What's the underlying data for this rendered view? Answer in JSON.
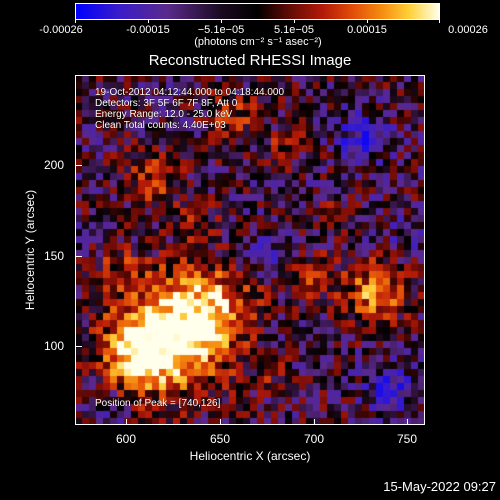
{
  "colorbar": {
    "ticks": [
      "-0.00026",
      "-0.00015",
      "−5.1e−05",
      "5.1e−05",
      "0.00015",
      "0.00026"
    ],
    "units": "(photons cm⁻² s⁻¹ asec⁻²)"
  },
  "title": "Reconstructed RHESSI Image",
  "annotations": {
    "time_range": "19-Oct-2012 04:12:44.000 to 04:18:44.000",
    "detectors": "Detectors: 3F 5F 6F 7F 8F, Att 0",
    "energy": "Energy Range: 12.0 - 25.0 keV",
    "clean": "Clean     Total counts: 4.40E+03",
    "peak": "Position of Peak = [740,126]"
  },
  "axes": {
    "x_title": "Heliocentric X (arcsec)",
    "y_title": "Heliocentric Y (arcsec)",
    "x_ticks": [
      "600",
      "650",
      "700",
      "750"
    ],
    "y_ticks": [
      "100",
      "150",
      "200"
    ]
  },
  "timestamp": "15-May-2022 09:27"
}
